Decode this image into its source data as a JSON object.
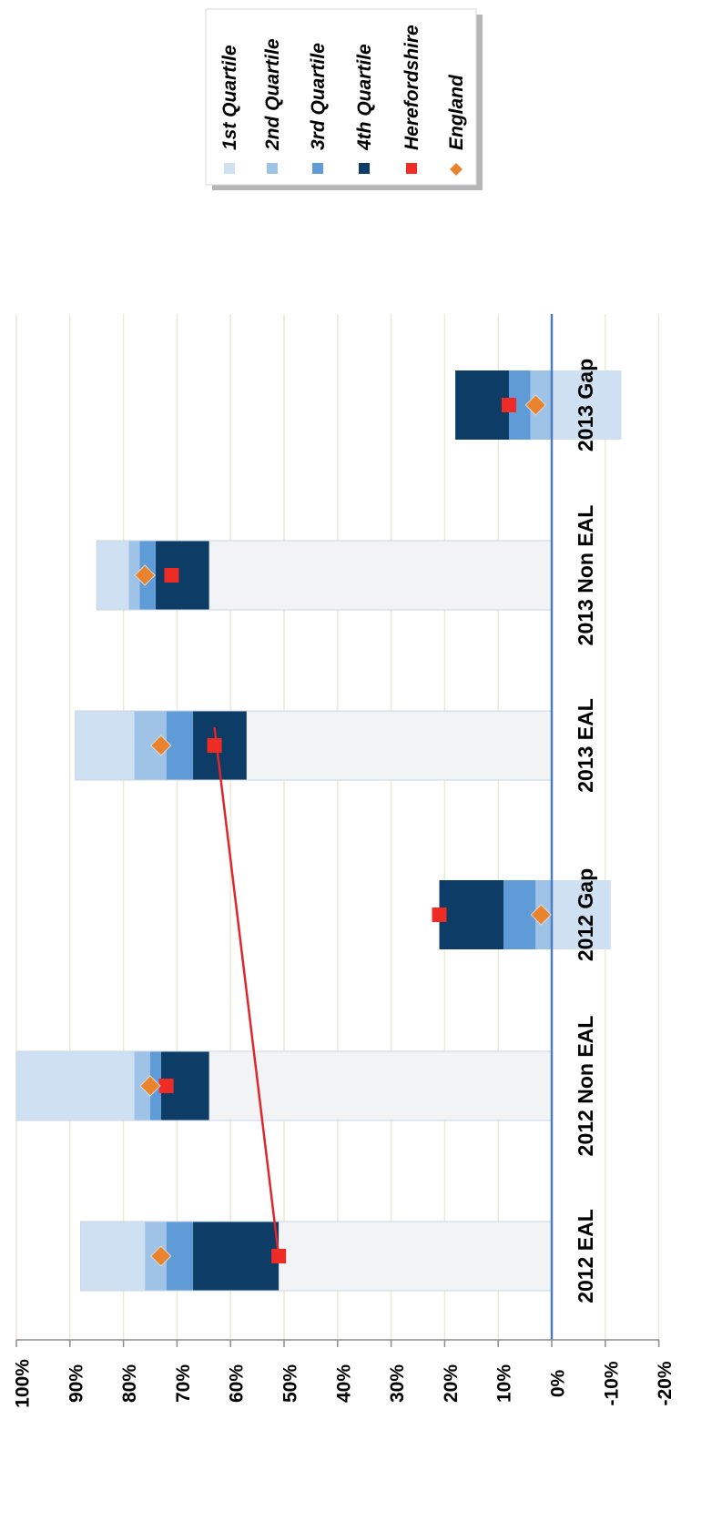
{
  "chart_data": {
    "type": "bar",
    "orientation": "horizontal-floating-quartile",
    "categories": [
      "2012 EAL",
      "2012 Non EAL",
      "2012 Gap",
      "2013 EAL",
      "2013 Non EAL",
      "2013 Gap"
    ],
    "value_axis": {
      "ticks": [
        "100%",
        "90%",
        "80%",
        "70%",
        "60%",
        "50%",
        "40%",
        "30%",
        "20%",
        "10%",
        "0%",
        "-10%",
        "-20%"
      ],
      "range": [
        -20,
        100
      ],
      "gridlines": true
    },
    "quartile_boundaries": [
      {
        "category": "2012 EAL",
        "start": 0,
        "q4_top": 51,
        "q3_top": 67,
        "q2_top": 72,
        "q1_top": 76,
        "max": 88
      },
      {
        "category": "2012 Non EAL",
        "start": 0,
        "q4_top": 64,
        "q3_top": 73,
        "q2_top": 75,
        "q1_top": 78,
        "max": 100
      },
      {
        "category": "2012 Gap",
        "start": -11,
        "q4_top": 21,
        "q3_top": 9,
        "q2_top": 3,
        "q1_top": -11,
        "max": 21
      },
      {
        "category": "2013 EAL",
        "start": 0,
        "q4_top": 57,
        "q3_top": 67,
        "q2_top": 72,
        "q1_top": 78,
        "max": 89
      },
      {
        "category": "2013 Non EAL",
        "start": 0,
        "q4_top": 64,
        "q3_top": 74,
        "q2_top": 77,
        "q1_top": 79,
        "max": 85
      },
      {
        "category": "2013 Gap",
        "start": -13,
        "q4_top": 18,
        "q3_top": 8,
        "q2_top": 4,
        "q1_top": -13,
        "max": 18
      }
    ],
    "series": [
      {
        "name": "Herefordshire",
        "values": [
          51,
          72,
          21,
          63,
          71,
          8
        ]
      },
      {
        "name": "England",
        "values": [
          73,
          75,
          2,
          73,
          76,
          3
        ]
      }
    ],
    "trend_line": {
      "from_category": "2012 EAL",
      "to_category": "2013 EAL",
      "from": 51,
      "to": 63
    },
    "legend": {
      "position": "top-right",
      "entries": [
        {
          "label": "1st Quartile",
          "color": "#cfe0f3",
          "shape": "square"
        },
        {
          "label": "2nd Quartile",
          "color": "#9fc3e7",
          "shape": "square"
        },
        {
          "label": "3rd Quartile",
          "color": "#5f9bd6",
          "shape": "square"
        },
        {
          "label": "4th Quartile",
          "color": "#0d3c66",
          "shape": "square"
        },
        {
          "label": "Herefordshire",
          "color": "#ee2b24",
          "shape": "square"
        },
        {
          "label": "England",
          "color": "#e9832e",
          "shape": "diamond"
        }
      ]
    },
    "colors": {
      "base": "#f2f3f5",
      "q1": "#cfe0f3",
      "q2": "#9fc3e7",
      "q3": "#5f9bd6",
      "q4": "#0d3c66",
      "herefordshire": "#ee2b24",
      "england": "#e9832e",
      "trend_line": "#e0262a",
      "zero_line": "#4a7ec4",
      "grid": "#ece9d6"
    }
  }
}
